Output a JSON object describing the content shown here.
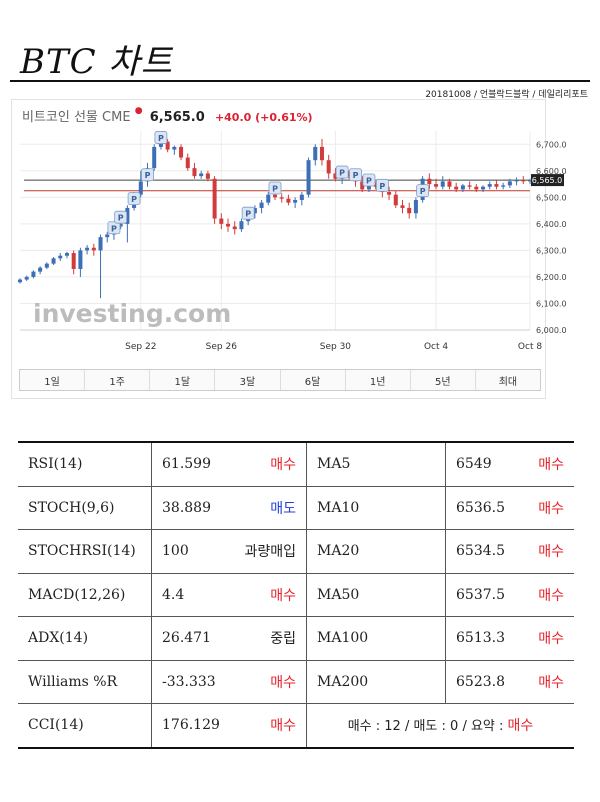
{
  "page": {
    "title": "BTC 차트",
    "source": "20181008 / 언블락드블락 / 데일리리포트"
  },
  "chart_header": {
    "instrument": "비트코인 선물 CME",
    "last": "6,565.0",
    "change": "+40.0 (+0.61%)"
  },
  "watermark": "investing.com",
  "range_buttons": [
    "1일",
    "1주",
    "1달",
    "3달",
    "6달",
    "1년",
    "5년",
    "최대"
  ],
  "colors": {
    "up": "#3d6fb6",
    "down": "#d23b3b",
    "buy": "#e4232b",
    "sell": "#1f3fd6",
    "lastline": "#444444",
    "refline": "#c0392b"
  },
  "chart_data": {
    "type": "candlestick",
    "title": "비트코인 선물 CME",
    "ylim": [
      6000,
      6750
    ],
    "yticks": [
      "6,000.0",
      "6,100.0",
      "6,200.0",
      "6,300.0",
      "6,400.0",
      "6,500.0",
      "6,600.0",
      "6,700.0"
    ],
    "xticks": [
      "Sep 22",
      "Sep 26",
      "Sep 30",
      "Oct 4",
      "Oct 8"
    ],
    "xtick_index": [
      18,
      30,
      47,
      62,
      76
    ],
    "last_price": 6565,
    "last_label": "6,565.0",
    "ref_line": 6525,
    "candles": [
      [
        6180,
        6195,
        6175,
        6190
      ],
      [
        6190,
        6205,
        6185,
        6200
      ],
      [
        6200,
        6225,
        6195,
        6220
      ],
      [
        6220,
        6240,
        6210,
        6235
      ],
      [
        6235,
        6255,
        6230,
        6250
      ],
      [
        6250,
        6275,
        6245,
        6270
      ],
      [
        6270,
        6290,
        6260,
        6280
      ],
      [
        6280,
        6295,
        6270,
        6290
      ],
      [
        6290,
        6300,
        6210,
        6230
      ],
      [
        6230,
        6310,
        6200,
        6300
      ],
      [
        6300,
        6320,
        6285,
        6310
      ],
      [
        6310,
        6325,
        6280,
        6300
      ],
      [
        6300,
        6360,
        6120,
        6350
      ],
      [
        6350,
        6370,
        6330,
        6360
      ],
      [
        6360,
        6400,
        6340,
        6390
      ],
      [
        6390,
        6410,
        6380,
        6400
      ],
      [
        6400,
        6470,
        6330,
        6460
      ],
      [
        6460,
        6520,
        6450,
        6510
      ],
      [
        6510,
        6600,
        6500,
        6560
      ],
      [
        6560,
        6630,
        6540,
        6610
      ],
      [
        6610,
        6700,
        6600,
        6690
      ],
      [
        6690,
        6730,
        6680,
        6710
      ],
      [
        6710,
        6720,
        6670,
        6680
      ],
      [
        6680,
        6695,
        6660,
        6690
      ],
      [
        6690,
        6700,
        6640,
        6650
      ],
      [
        6650,
        6665,
        6600,
        6610
      ],
      [
        6610,
        6630,
        6570,
        6580
      ],
      [
        6580,
        6600,
        6570,
        6590
      ],
      [
        6590,
        6600,
        6560,
        6570
      ],
      [
        6570,
        6580,
        6400,
        6420
      ],
      [
        6420,
        6440,
        6380,
        6400
      ],
      [
        6400,
        6420,
        6370,
        6390
      ],
      [
        6390,
        6410,
        6360,
        6380
      ],
      [
        6380,
        6420,
        6370,
        6410
      ],
      [
        6410,
        6450,
        6395,
        6440
      ],
      [
        6440,
        6470,
        6420,
        6460
      ],
      [
        6460,
        6490,
        6440,
        6480
      ],
      [
        6480,
        6520,
        6470,
        6510
      ],
      [
        6510,
        6530,
        6490,
        6500
      ],
      [
        6500,
        6515,
        6480,
        6495
      ],
      [
        6495,
        6510,
        6470,
        6480
      ],
      [
        6480,
        6500,
        6460,
        6490
      ],
      [
        6490,
        6520,
        6470,
        6510
      ],
      [
        6510,
        6650,
        6500,
        6640
      ],
      [
        6640,
        6700,
        6620,
        6690
      ],
      [
        6690,
        6720,
        6620,
        6640
      ],
      [
        6640,
        6660,
        6570,
        6590
      ],
      [
        6590,
        6610,
        6560,
        6570
      ],
      [
        6570,
        6600,
        6550,
        6590
      ],
      [
        6590,
        6600,
        6570,
        6580
      ],
      [
        6580,
        6600,
        6540,
        6560
      ],
      [
        6560,
        6580,
        6520,
        6530
      ],
      [
        6530,
        6560,
        6520,
        6550
      ],
      [
        6550,
        6560,
        6530,
        6540
      ],
      [
        6540,
        6560,
        6500,
        6520
      ],
      [
        6520,
        6540,
        6490,
        6510
      ],
      [
        6510,
        6525,
        6460,
        6470
      ],
      [
        6470,
        6490,
        6440,
        6460
      ],
      [
        6460,
        6480,
        6420,
        6440
      ],
      [
        6440,
        6500,
        6420,
        6490
      ],
      [
        6490,
        6580,
        6480,
        6570
      ],
      [
        6570,
        6590,
        6530,
        6550
      ],
      [
        6550,
        6570,
        6530,
        6540
      ],
      [
        6540,
        6580,
        6530,
        6560
      ],
      [
        6560,
        6570,
        6530,
        6540
      ],
      [
        6540,
        6555,
        6520,
        6530
      ],
      [
        6530,
        6550,
        6520,
        6545
      ],
      [
        6545,
        6560,
        6530,
        6540
      ],
      [
        6540,
        6550,
        6520,
        6530
      ],
      [
        6530,
        6545,
        6520,
        6540
      ],
      [
        6540,
        6560,
        6530,
        6550
      ],
      [
        6550,
        6565,
        6530,
        6540
      ],
      [
        6540,
        6555,
        6530,
        6545
      ],
      [
        6545,
        6570,
        6535,
        6560
      ],
      [
        6560,
        6575,
        6545,
        6565
      ],
      [
        6565,
        6580,
        6550,
        6560
      ],
      [
        6560,
        6570,
        6550,
        6565
      ]
    ],
    "p_markers": [
      14,
      15,
      17,
      19,
      21,
      34,
      38,
      48,
      50,
      52,
      54,
      60
    ]
  },
  "indicators": [
    {
      "name": "RSI(14)",
      "value": "61.599",
      "signal": "매수",
      "signal_type": "buy",
      "ma_name": "MA5",
      "ma_value": "6549",
      "ma_signal": "매수",
      "ma_signal_type": "buy"
    },
    {
      "name": "STOCH(9,6)",
      "value": "38.889",
      "signal": "매도",
      "signal_type": "sell",
      "ma_name": "MA10",
      "ma_value": "6536.5",
      "ma_signal": "매수",
      "ma_signal_type": "buy"
    },
    {
      "name": "STOCHRSI(14)",
      "value": "100",
      "signal": "과량매입",
      "signal_type": "neutral",
      "ma_name": "MA20",
      "ma_value": "6534.5",
      "ma_signal": "매수",
      "ma_signal_type": "buy"
    },
    {
      "name": "MACD(12,26)",
      "value": "4.4",
      "signal": "매수",
      "signal_type": "buy",
      "ma_name": "MA50",
      "ma_value": "6537.5",
      "ma_signal": "매수",
      "ma_signal_type": "buy"
    },
    {
      "name": "ADX(14)",
      "value": "26.471",
      "signal": "중립",
      "signal_type": "neutral",
      "ma_name": "MA100",
      "ma_value": "6513.3",
      "ma_signal": "매수",
      "ma_signal_type": "buy"
    },
    {
      "name": "Williams %R",
      "value": "-33.333",
      "signal": "매수",
      "signal_type": "buy",
      "ma_name": "MA200",
      "ma_value": "6523.8",
      "ma_signal": "매수",
      "ma_signal_type": "buy"
    }
  ],
  "cci": {
    "name": "CCI(14)",
    "value": "176.129",
    "signal": "매수",
    "signal_type": "buy"
  },
  "summary": {
    "text": "매수 : 12 / 매도 : 0 / 요약 : ",
    "verdict": "매수"
  }
}
